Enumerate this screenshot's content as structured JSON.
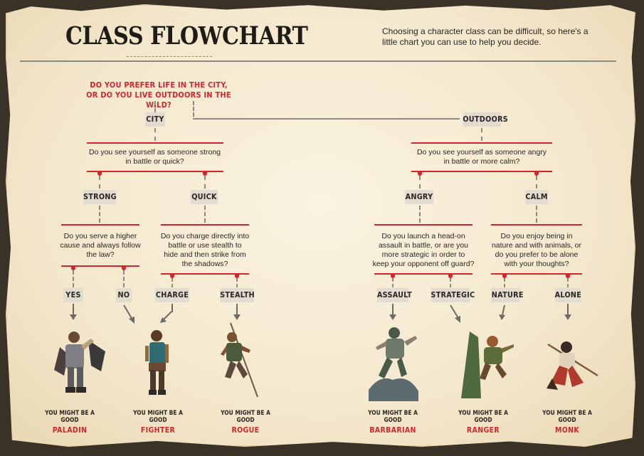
{
  "title": "CLASS FLOWCHART",
  "intro": "Choosing a character class can be difficult, so here's a little chart you can use to help you decide.",
  "root_question": [
    "DO YOU PREFER LIFE IN THE CITY,",
    "OR DO YOU LIVE OUTDOORS IN THE WILD?"
  ],
  "branches": {
    "city": "CITY",
    "outdoors": "OUTDOORS"
  },
  "questions": {
    "city": [
      "Do you see yourself as someone strong",
      "in battle or quick?"
    ],
    "outdoors": [
      "Do you see yourself as someone angry",
      "in battle or more calm?"
    ],
    "strong": [
      "Do you serve a higher",
      "cause and always follow",
      "the law?"
    ],
    "quick": [
      "Do you charge directly into",
      "battle or use stealth to",
      "hide and then strike from",
      "the shadows?"
    ],
    "angry": [
      "Do you launch a head-on",
      "assault in battle, or are you",
      "more strategic in order to",
      "keep your opponent off guard?"
    ],
    "calm": [
      "Do you enjoy being in",
      "nature and with animals, or",
      "do you prefer to be alone",
      "with your thoughts?"
    ]
  },
  "options": {
    "strong": "STRONG",
    "quick": "QUICK",
    "angry": "ANGRY",
    "calm": "CALM",
    "yes": "YES",
    "no": "NO",
    "charge": "CHARGE",
    "stealth": "STEALTH",
    "assault": "ASSAULT",
    "strategic": "STRATEGIC",
    "nature": "NATURE",
    "alone": "ALONE"
  },
  "results": [
    {
      "prefix": "YOU MIGHT BE A GOOD",
      "class": "PALADIN"
    },
    {
      "prefix": "YOU MIGHT BE A GOOD",
      "class": "FIGHTER"
    },
    {
      "prefix": "YOU MIGHT BE A GOOD",
      "class": "ROGUE"
    },
    {
      "prefix": "YOU MIGHT BE A GOOD",
      "class": "BARBARIAN"
    },
    {
      "prefix": "YOU MIGHT BE A GOOD",
      "class": "RANGER"
    },
    {
      "prefix": "YOU MIGHT BE A GOOD",
      "class": "MONK"
    }
  ],
  "colors": {
    "accent": "#d2262c",
    "text": "#2b2621",
    "box": "#e2dbd0",
    "parchment": "#f4e8cd"
  }
}
